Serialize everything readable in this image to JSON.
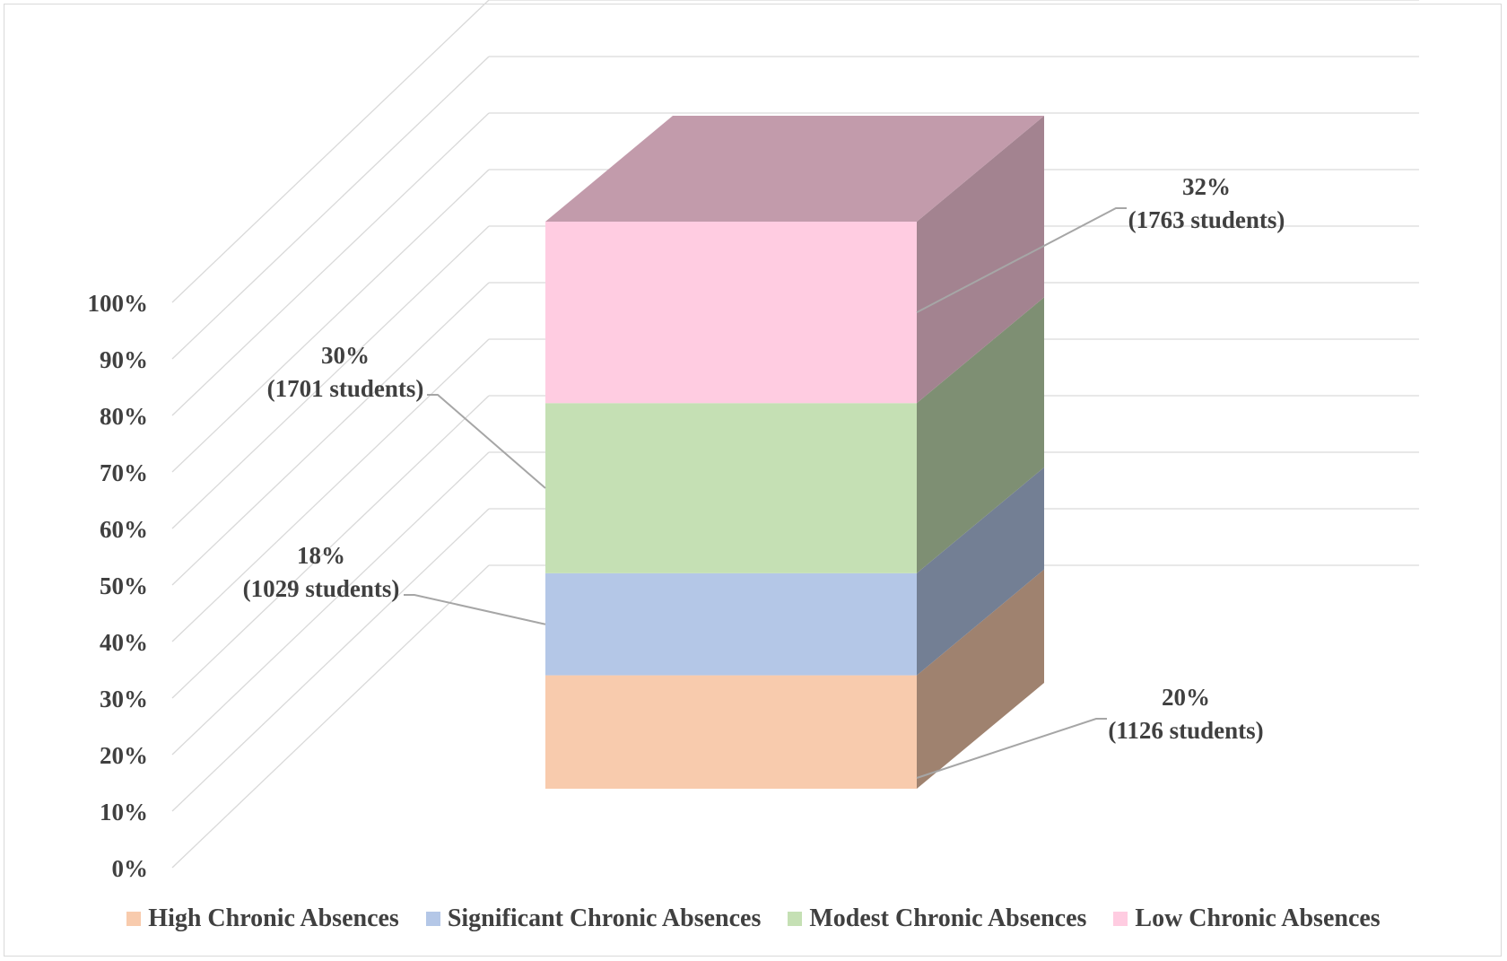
{
  "chart_data": {
    "type": "bar",
    "variant": "3d-stacked-100",
    "categories": [
      ""
    ],
    "series": [
      {
        "name": "High Chronic Absences",
        "values": [
          20
        ],
        "label_percent": "20%",
        "label_count": "(1126 students)",
        "color": "#f8cbad"
      },
      {
        "name": "Significant Chronic Absences",
        "values": [
          18
        ],
        "label_percent": "18%",
        "label_count": "(1029 students)",
        "color": "#b4c7e7"
      },
      {
        "name": "Modest Chronic Absences",
        "values": [
          30
        ],
        "label_percent": "30%",
        "label_count": "(1701 students)",
        "color": "#c5e0b4"
      },
      {
        "name": "Low Chronic Absences",
        "values": [
          32
        ],
        "label_percent": "32%",
        "label_count": "(1763 students)",
        "color": "#ffcce1"
      }
    ],
    "y_ticks": [
      "0%",
      "10%",
      "20%",
      "30%",
      "40%",
      "50%",
      "60%",
      "70%",
      "80%",
      "90%",
      "100%"
    ],
    "ylim": [
      0,
      100
    ],
    "grid": true,
    "legend_position": "bottom",
    "title": "",
    "xlabel": "",
    "ylabel": ""
  }
}
